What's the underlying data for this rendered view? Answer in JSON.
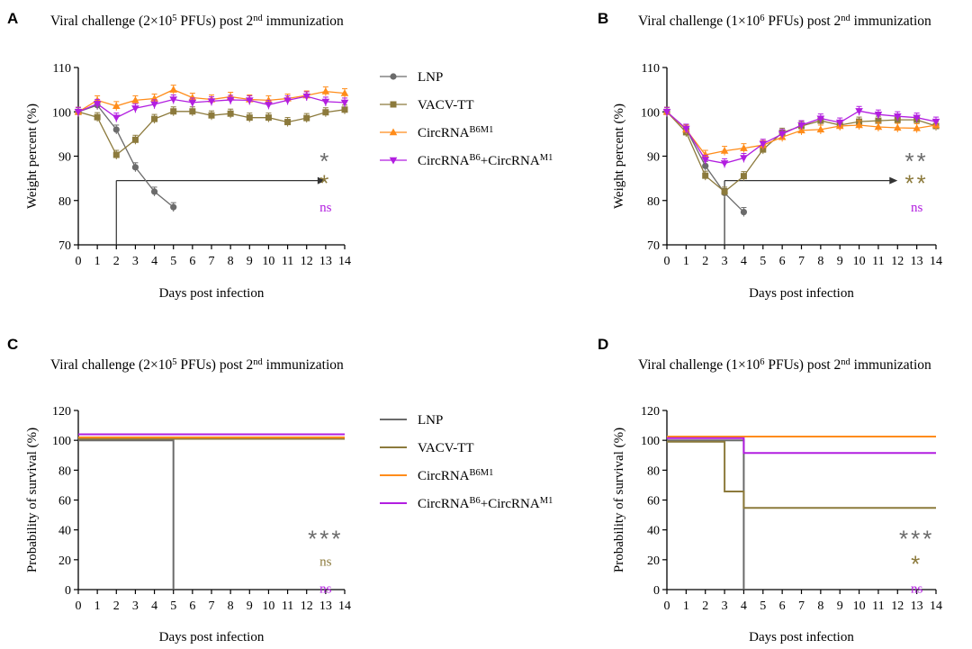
{
  "colors": {
    "LNP": "#6b6b6b",
    "VACV-TT": "#8c7a3c",
    "CircRNA_B6M1": "#ff8c1a",
    "CircRNA_B6_M1": "#b21ee0",
    "axis": "#000000",
    "arrow": "#333333"
  },
  "legend": {
    "items": [
      {
        "key": "LNP",
        "text": "LNP",
        "sup1": "",
        "mid": "",
        "sup2": ""
      },
      {
        "key": "VACV-TT",
        "text": "VACV-TT",
        "sup1": "",
        "mid": "",
        "sup2": ""
      },
      {
        "key": "CircRNA_B6M1",
        "text": "CircRNA",
        "sup1": "B6M1",
        "mid": "",
        "sup2": ""
      },
      {
        "key": "CircRNA_B6_M1",
        "text": "CircRNA",
        "sup1": "B6",
        "mid": "+CircRNA",
        "sup2": "M1"
      }
    ]
  },
  "chart_data": [
    {
      "panel": "A",
      "type": "line",
      "title": {
        "pre": "Viral challenge (2×10",
        "sup1": "5",
        "mid": " PFUs) post 2",
        "sup2": "nd",
        "post": " immunization"
      },
      "xlabel": "Days post infection",
      "ylabel": "Weight percent (%)",
      "xlim": [
        0,
        14
      ],
      "ylim": [
        70,
        110
      ],
      "xticks": [
        0,
        1,
        2,
        3,
        4,
        5,
        6,
        7,
        8,
        9,
        10,
        11,
        12,
        13,
        14
      ],
      "yticks": [
        70,
        80,
        90,
        100,
        110
      ],
      "x": [
        0,
        1,
        2,
        3,
        4,
        5,
        6,
        7,
        8,
        9,
        10,
        11,
        12,
        13,
        14
      ],
      "series": [
        {
          "name": "LNP",
          "key": "LNP",
          "marker": "circle",
          "values": [
            100,
            101.5,
            96,
            87.5,
            82,
            78.5,
            null,
            null,
            null,
            null,
            null,
            null,
            null,
            null,
            null
          ]
        },
        {
          "name": "VACV-TT",
          "key": "VACV-TT",
          "marker": "square",
          "values": [
            100,
            98.8,
            90.3,
            93.7,
            98.4,
            100.1,
            100.1,
            99.2,
            99.6,
            98.7,
            98.7,
            97.7,
            98.6,
            99.9,
            100.5
          ]
        },
        {
          "name": "CircRNA B6M1",
          "key": "CircRNA_B6M1",
          "marker": "triangle-up",
          "values": [
            100,
            102.6,
            101.3,
            102.6,
            103,
            105,
            103.2,
            102.8,
            103.4,
            102.8,
            102.6,
            103,
            103.7,
            104.6,
            104.2
          ]
        },
        {
          "name": "CircRNA B6+CircRNA M1",
          "key": "CircRNA_B6_M1",
          "marker": "triangle-down",
          "values": [
            100,
            101.8,
            98.7,
            100.8,
            101.7,
            102.8,
            102.1,
            102.4,
            102.7,
            102.6,
            101.6,
            102.6,
            103.5,
            102.3,
            102.1
          ]
        }
      ],
      "annotation": {
        "arrow_from_day": 2,
        "arrow_to_day": 13,
        "arrow_y": 84.5
      },
      "significance": [
        {
          "label": "*",
          "key": "LNP",
          "x": 13,
          "y": 89.5
        },
        {
          "label": "*",
          "key": "VACV-TT",
          "x": 13,
          "y": 84.5
        },
        {
          "label": "ns",
          "key": "CircRNA_B6_M1",
          "x": 13,
          "y": 78.5
        }
      ]
    },
    {
      "panel": "B",
      "type": "line",
      "title": {
        "pre": "Viral challenge (1×10",
        "sup1": "6",
        "mid": " PFUs) post 2",
        "sup2": "nd",
        "post": " immunization"
      },
      "xlabel": "Days post infection",
      "ylabel": "Weight percent (%)",
      "xlim": [
        0,
        14
      ],
      "ylim": [
        70,
        110
      ],
      "xticks": [
        0,
        1,
        2,
        3,
        4,
        5,
        6,
        7,
        8,
        9,
        10,
        11,
        12,
        13,
        14
      ],
      "yticks": [
        70,
        80,
        90,
        100,
        110
      ],
      "x": [
        0,
        1,
        2,
        3,
        4,
        5,
        6,
        7,
        8,
        9,
        10,
        11,
        12,
        13,
        14
      ],
      "series": [
        {
          "name": "LNP",
          "key": "LNP",
          "marker": "circle",
          "values": [
            100,
            96.2,
            87.8,
            81.7,
            77.4,
            null,
            null,
            null,
            null,
            null,
            null,
            null,
            null,
            null,
            null
          ]
        },
        {
          "name": "VACV-TT",
          "key": "VACV-TT",
          "marker": "square",
          "values": [
            100,
            95.4,
            85.6,
            82,
            85.5,
            91.5,
            95.3,
            96.8,
            98,
            97,
            97.8,
            98,
            98.2,
            98.2,
            96.8
          ]
        },
        {
          "name": "CircRNA B6M1",
          "key": "CircRNA_B6M1",
          "marker": "triangle-up",
          "values": [
            100,
            96,
            90.3,
            91.2,
            91.8,
            92.5,
            94.3,
            95.8,
            96,
            96.8,
            97,
            96.6,
            96.4,
            96.3,
            97
          ]
        },
        {
          "name": "CircRNA B6+CircRNA M1",
          "key": "CircRNA_B6_M1",
          "marker": "triangle-down",
          "values": [
            100,
            96.2,
            89.2,
            88.4,
            89.6,
            92.8,
            95,
            97,
            98.5,
            97.6,
            100.2,
            99.4,
            99,
            98.7,
            97.8
          ]
        }
      ],
      "annotation": {
        "arrow_from_day": 3,
        "arrow_to_day": 12,
        "arrow_y": 84.5
      },
      "significance": [
        {
          "label": "**",
          "key": "LNP",
          "x": 13,
          "y": 89.5
        },
        {
          "label": "**",
          "key": "VACV-TT",
          "x": 13,
          "y": 84.5
        },
        {
          "label": "ns",
          "key": "CircRNA_B6_M1",
          "x": 13,
          "y": 78.5
        }
      ]
    },
    {
      "panel": "C",
      "type": "line",
      "title": {
        "pre": "Viral challenge (2×10",
        "sup1": "5",
        "mid": " PFUs) post 2",
        "sup2": "nd",
        "post": " immunization"
      },
      "xlabel": "Days post infection",
      "ylabel": "Probability of survival (%)",
      "xlim": [
        0,
        14
      ],
      "ylim": [
        0,
        120
      ],
      "xticks": [
        0,
        1,
        2,
        3,
        4,
        5,
        6,
        7,
        8,
        9,
        10,
        11,
        12,
        13,
        14
      ],
      "yticks": [
        0,
        20,
        40,
        60,
        80,
        100,
        120
      ],
      "series": [
        {
          "name": "LNP",
          "key": "LNP",
          "steps": [
            [
              0,
              100
            ],
            [
              5,
              100
            ],
            [
              5,
              0
            ]
          ]
        },
        {
          "name": "VACV-TT",
          "key": "VACV-TT",
          "steps": [
            [
              0,
              101
            ],
            [
              14,
              101
            ]
          ]
        },
        {
          "name": "CircRNA B6M1",
          "key": "CircRNA_B6M1",
          "steps": [
            [
              0,
              102
            ],
            [
              14,
              102
            ]
          ]
        },
        {
          "name": "CircRNA B6+CircRNA M1",
          "key": "CircRNA_B6_M1",
          "steps": [
            [
              0,
              104
            ],
            [
              14,
              104
            ]
          ]
        }
      ],
      "significance": [
        {
          "label": "***",
          "key": "LNP",
          "x": 13,
          "y": 36
        },
        {
          "label": "ns",
          "key": "VACV-TT",
          "x": 13,
          "y": 19
        },
        {
          "label": "ns",
          "key": "CircRNA_B6_M1",
          "x": 13,
          "y": 1
        }
      ]
    },
    {
      "panel": "D",
      "type": "line",
      "title": {
        "pre": "Viral challenge (1×10",
        "sup1": "6",
        "mid": " PFUs) post 2",
        "sup2": "nd",
        "post": " immunization"
      },
      "xlabel": "Days post infection",
      "ylabel": "Probability of survival (%)",
      "xlim": [
        0,
        14
      ],
      "ylim": [
        0,
        120
      ],
      "xticks": [
        0,
        1,
        2,
        3,
        4,
        5,
        6,
        7,
        8,
        9,
        10,
        11,
        12,
        13,
        14
      ],
      "yticks": [
        0,
        20,
        40,
        60,
        80,
        100,
        120
      ],
      "series": [
        {
          "name": "LNP",
          "key": "LNP",
          "steps": [
            [
              0,
              100
            ],
            [
              4,
              100
            ],
            [
              4,
              0
            ]
          ]
        },
        {
          "name": "VACV-TT",
          "key": "VACV-TT",
          "steps": [
            [
              0,
              99
            ],
            [
              3,
              99
            ],
            [
              3,
              65.7
            ],
            [
              4,
              65.7
            ],
            [
              4,
              54.7
            ],
            [
              14,
              54.7
            ]
          ]
        },
        {
          "name": "CircRNA B6M1",
          "key": "CircRNA_B6M1",
          "steps": [
            [
              0,
              102.5
            ],
            [
              14,
              102.5
            ]
          ]
        },
        {
          "name": "CircRNA B6+CircRNA M1",
          "key": "CircRNA_B6_M1",
          "steps": [
            [
              0,
              101.5
            ],
            [
              4,
              101.5
            ],
            [
              4,
              91.5
            ],
            [
              14,
              91.5
            ]
          ]
        }
      ],
      "significance": [
        {
          "label": "***",
          "key": "LNP",
          "x": 13,
          "y": 36
        },
        {
          "label": "*",
          "key": "VACV-TT",
          "x": 13,
          "y": 19
        },
        {
          "label": "ns",
          "key": "CircRNA_B6_M1",
          "x": 13,
          "y": 1
        }
      ]
    }
  ]
}
